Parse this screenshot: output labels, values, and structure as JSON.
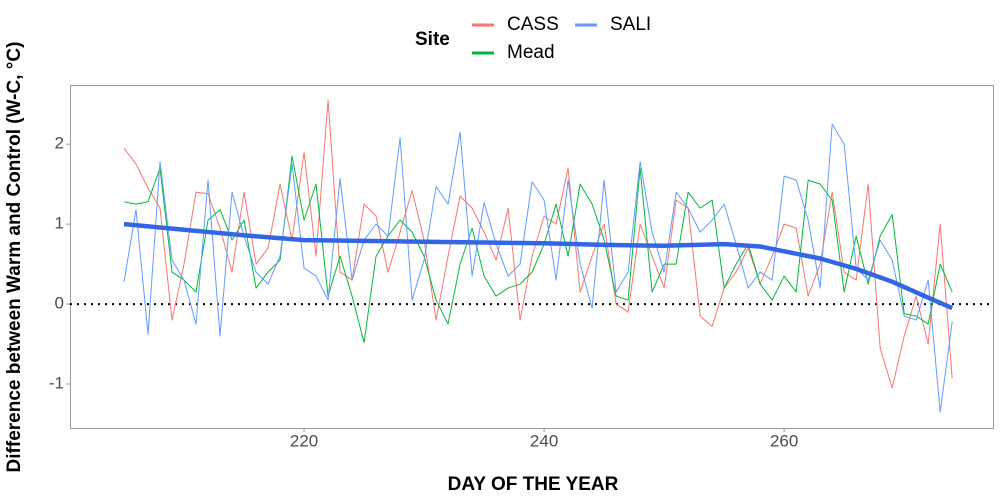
{
  "chart_data": {
    "type": "line",
    "x_label": "DAY OF THE YEAR",
    "y_label": "Difference between Warm and Control (W-C, °C)",
    "legend_title": "Site",
    "legend_position": "top",
    "x": [
      205,
      206,
      207,
      208,
      209,
      210,
      211,
      212,
      213,
      214,
      215,
      216,
      217,
      218,
      219,
      220,
      221,
      222,
      223,
      224,
      225,
      226,
      227,
      228,
      229,
      230,
      231,
      232,
      233,
      234,
      235,
      236,
      237,
      238,
      239,
      240,
      241,
      242,
      243,
      244,
      245,
      246,
      247,
      248,
      249,
      250,
      251,
      252,
      253,
      254,
      255,
      256,
      257,
      258,
      259,
      260,
      261,
      262,
      263,
      264,
      265,
      266,
      267,
      268,
      269,
      270,
      271,
      272,
      273,
      274
    ],
    "series": [
      {
        "name": "CASS",
        "color": "#f8766d",
        "values": [
          1.95,
          1.75,
          1.45,
          1.2,
          -0.2,
          0.5,
          1.4,
          1.38,
          0.95,
          0.4,
          1.4,
          0.5,
          0.7,
          1.5,
          0.8,
          1.9,
          0.6,
          2.55,
          0.4,
          0.3,
          1.25,
          1.1,
          0.4,
          0.9,
          1.42,
          0.8,
          -0.2,
          0.6,
          1.35,
          1.2,
          0.9,
          0.55,
          1.2,
          -0.2,
          0.6,
          1.1,
          1.0,
          1.7,
          0.15,
          0.6,
          1.0,
          0.0,
          -0.1,
          1.0,
          0.6,
          0.2,
          1.3,
          1.2,
          -0.15,
          -0.28,
          0.2,
          0.4,
          0.7,
          0.25,
          0.6,
          1.0,
          0.95,
          0.1,
          0.5,
          1.4,
          0.4,
          0.3,
          1.5,
          -0.55,
          -1.05,
          -0.4,
          0.1,
          -0.5,
          1.0,
          -0.93
        ]
      },
      {
        "name": "Mead",
        "color": "#00ba38",
        "values": [
          1.28,
          1.25,
          1.28,
          1.7,
          0.4,
          0.3,
          0.15,
          1.05,
          1.18,
          0.8,
          1.05,
          0.2,
          0.4,
          0.55,
          1.85,
          1.05,
          1.5,
          0.1,
          0.6,
          0.1,
          -0.48,
          0.6,
          0.85,
          1.05,
          0.9,
          0.6,
          0.05,
          -0.25,
          0.5,
          0.95,
          0.35,
          0.1,
          0.2,
          0.25,
          0.4,
          0.75,
          1.25,
          0.6,
          1.5,
          1.25,
          0.8,
          0.1,
          0.05,
          1.7,
          0.15,
          0.5,
          0.5,
          1.4,
          1.2,
          1.3,
          0.2,
          0.5,
          0.75,
          0.25,
          0.05,
          0.35,
          0.15,
          1.55,
          1.5,
          1.3,
          0.15,
          0.85,
          0.25,
          0.85,
          1.12,
          -0.12,
          -0.15,
          -0.25,
          0.5,
          0.15
        ]
      },
      {
        "name": "SALI",
        "color": "#619cff",
        "values": [
          0.28,
          1.18,
          -0.38,
          1.78,
          0.55,
          0.3,
          -0.25,
          1.55,
          -0.4,
          1.4,
          0.85,
          0.4,
          0.25,
          0.6,
          1.75,
          0.45,
          0.35,
          0.05,
          1.57,
          0.3,
          0.8,
          1.0,
          0.85,
          2.08,
          0.05,
          0.55,
          1.47,
          1.25,
          2.15,
          0.35,
          1.27,
          0.75,
          0.35,
          0.5,
          1.53,
          1.3,
          0.3,
          1.55,
          0.5,
          -0.05,
          1.55,
          0.15,
          0.4,
          1.78,
          0.9,
          0.4,
          1.4,
          1.2,
          0.9,
          1.05,
          1.25,
          0.75,
          0.2,
          0.4,
          0.3,
          1.6,
          1.55,
          1.05,
          0.2,
          2.25,
          2.0,
          0.45,
          0.3,
          0.8,
          0.55,
          -0.15,
          -0.2,
          0.3,
          -1.35,
          -0.22
        ]
      }
    ],
    "trend": {
      "color": "#3366e6",
      "x": [
        205,
        210,
        215,
        220,
        225,
        230,
        235,
        240,
        245,
        250,
        255,
        258,
        260,
        263,
        266,
        269,
        272,
        274
      ],
      "values": [
        1.0,
        0.93,
        0.86,
        0.8,
        0.79,
        0.78,
        0.77,
        0.76,
        0.74,
        0.73,
        0.75,
        0.72,
        0.66,
        0.57,
        0.44,
        0.28,
        0.08,
        -0.05
      ]
    },
    "hline": 0,
    "xlim": [
      200.5,
      277.4
    ],
    "ylim": [
      -1.55,
      2.74
    ],
    "xticks": [
      220,
      240,
      260
    ],
    "yticks": [
      -1,
      0,
      1,
      2
    ],
    "grid": false
  }
}
